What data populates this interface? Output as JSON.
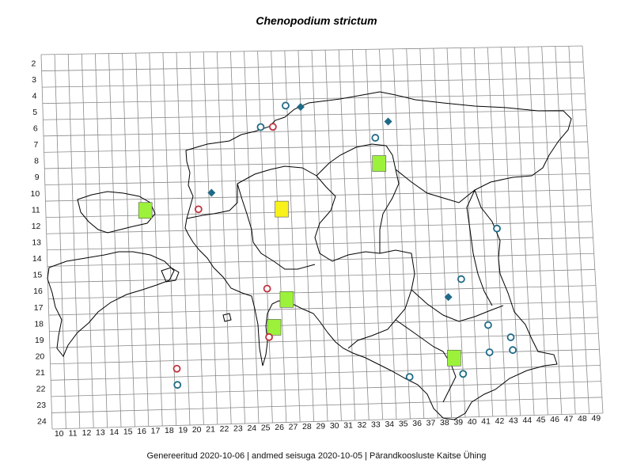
{
  "title": "Chenopodium strictum",
  "footer": "Genereeritud 2020-10-06  |  andmed seisuga 2020-10-05  |  Pärandkoosluste Kaitse Ühing",
  "colors": {
    "grid": "#8a8a8a",
    "border": "#000000",
    "circle_teal": "#1f6a86",
    "circle_red": "#c0323e",
    "diamond": "#1f6a86",
    "square_green": "#9cf23a",
    "square_yellow": "#f8f21a"
  },
  "grid": {
    "row_labels": [
      "2",
      "3",
      "4",
      "5",
      "6",
      "7",
      "8",
      "9",
      "10",
      "11",
      "12",
      "13",
      "14",
      "15",
      "16",
      "17",
      "18",
      "19",
      "20",
      "21",
      "22",
      "23",
      "24"
    ],
    "col_labels": [
      "10",
      "11",
      "12",
      "13",
      "14",
      "15",
      "16",
      "17",
      "18",
      "19",
      "20",
      "21",
      "22",
      "23",
      "24",
      "25",
      "26",
      "27",
      "28",
      "29",
      "30",
      "31",
      "32",
      "33",
      "34",
      "35",
      "36",
      "37",
      "38",
      "39",
      "40",
      "41",
      "42",
      "43",
      "44",
      "45",
      "46",
      "47",
      "48",
      "49"
    ]
  },
  "markers": {
    "squares_green": [
      [
        17.3,
        11.2
      ],
      [
        34.6,
        8.6
      ],
      [
        27.4,
        16.9
      ],
      [
        26.4,
        18.6
      ],
      [
        39.4,
        20.8
      ]
    ],
    "squares_yellow": [
      [
        27.3,
        11.3
      ]
    ],
    "circles_teal": [
      [
        26.0,
        6.2
      ],
      [
        27.9,
        4.9
      ],
      [
        34.4,
        7.0
      ],
      [
        40.2,
        15.9
      ],
      [
        43.0,
        12.8
      ],
      [
        42.0,
        18.8
      ],
      [
        43.6,
        19.6
      ],
      [
        42.0,
        20.5
      ],
      [
        43.7,
        20.4
      ],
      [
        19.2,
        22.0
      ],
      [
        36.1,
        21.9
      ],
      [
        40.0,
        21.8
      ]
    ],
    "circles_red": [
      [
        26.9,
        6.2
      ],
      [
        21.2,
        11.2
      ],
      [
        26.0,
        16.2
      ],
      [
        26.0,
        19.2
      ],
      [
        19.2,
        21.0
      ]
    ],
    "diamonds": [
      [
        27.9,
        4.9
      ],
      [
        29.0,
        5.0
      ],
      [
        35.4,
        6.0
      ],
      [
        22.2,
        10.2
      ],
      [
        40.2,
        15.9
      ],
      [
        39.2,
        17.0
      ],
      [
        43.7,
        20.4
      ]
    ]
  }
}
